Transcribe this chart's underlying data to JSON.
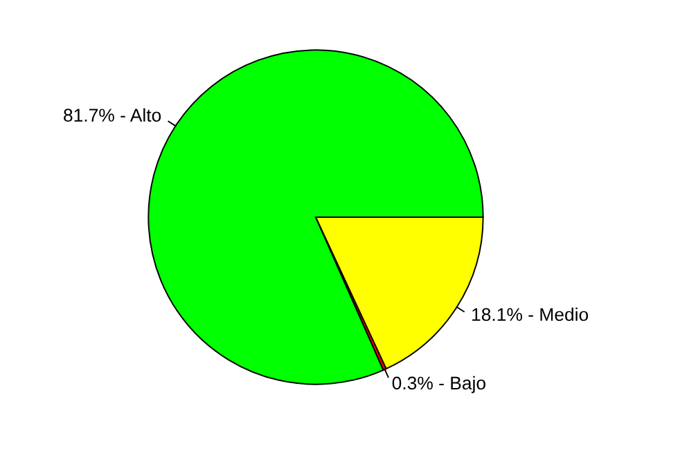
{
  "chart_data": {
    "type": "pie",
    "categories": [
      "81.7% - Alto",
      "0.3% - Bajo",
      "18.1% - Medio"
    ],
    "values": [
      81.7,
      0.3,
      18.1
    ],
    "colors": [
      "#00ff00",
      "#ff0000",
      "#ffff00"
    ]
  }
}
